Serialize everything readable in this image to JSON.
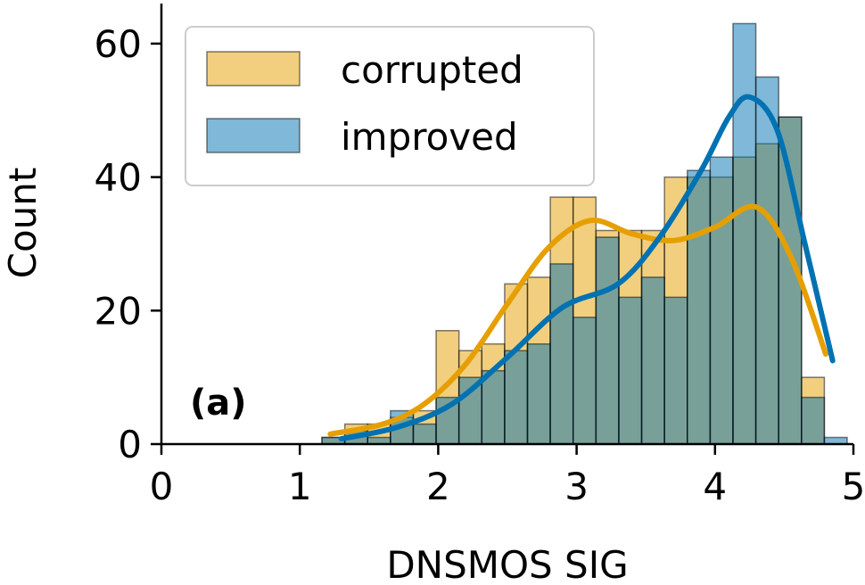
{
  "chart_data": {
    "type": "bar",
    "panel_label": "(a)",
    "xlabel": "DNSMOS SIG",
    "ylabel": "Count",
    "xlim": [
      0,
      5
    ],
    "ylim": [
      0,
      66
    ],
    "xticks": [
      0,
      1,
      2,
      3,
      4,
      5
    ],
    "xtick_labels": [
      "0",
      "1",
      "2",
      "3",
      "4",
      "5"
    ],
    "yticks": [
      0,
      20,
      40,
      60
    ],
    "ytick_labels": [
      "0",
      "20",
      "40",
      "60"
    ],
    "legend_position": "top-left",
    "bin_edges": [
      1.16,
      1.325,
      1.49,
      1.655,
      1.82,
      1.985,
      2.15,
      2.315,
      2.48,
      2.645,
      2.81,
      2.975,
      3.14,
      3.305,
      3.47,
      3.635,
      3.8,
      3.965,
      4.13,
      4.295,
      4.46,
      4.625,
      4.79,
      4.955
    ],
    "series": [
      {
        "name": "corrupted",
        "color": "#E69F00",
        "values": [
          1,
          3,
          3,
          4,
          5,
          17,
          14,
          15,
          24,
          25,
          37,
          37,
          32,
          32,
          32,
          40,
          40,
          40,
          43,
          45,
          49,
          10,
          0
        ],
        "kde": [
          [
            1.22,
            1.5
          ],
          [
            1.6,
            3
          ],
          [
            1.9,
            6
          ],
          [
            2.2,
            12
          ],
          [
            2.5,
            21
          ],
          [
            2.8,
            29.5
          ],
          [
            3.1,
            33.5
          ],
          [
            3.4,
            31.5
          ],
          [
            3.7,
            30.5
          ],
          [
            4.0,
            32.5
          ],
          [
            4.3,
            35.5
          ],
          [
            4.55,
            28
          ],
          [
            4.8,
            13.5
          ]
        ]
      },
      {
        "name": "improved",
        "color": "#0072B2",
        "values": [
          1,
          2,
          1,
          5,
          3,
          7,
          10,
          11,
          14,
          15,
          27,
          19,
          31,
          22,
          25,
          22,
          41,
          43,
          63,
          55,
          49,
          7,
          1
        ],
        "kde": [
          [
            1.3,
            0.8
          ],
          [
            1.7,
            2.5
          ],
          [
            2.1,
            6
          ],
          [
            2.5,
            13
          ],
          [
            2.9,
            20.5
          ],
          [
            3.3,
            24
          ],
          [
            3.6,
            31
          ],
          [
            3.9,
            41
          ],
          [
            4.1,
            49
          ],
          [
            4.25,
            52
          ],
          [
            4.45,
            47
          ],
          [
            4.65,
            30
          ],
          [
            4.85,
            12.5
          ]
        ]
      }
    ]
  }
}
